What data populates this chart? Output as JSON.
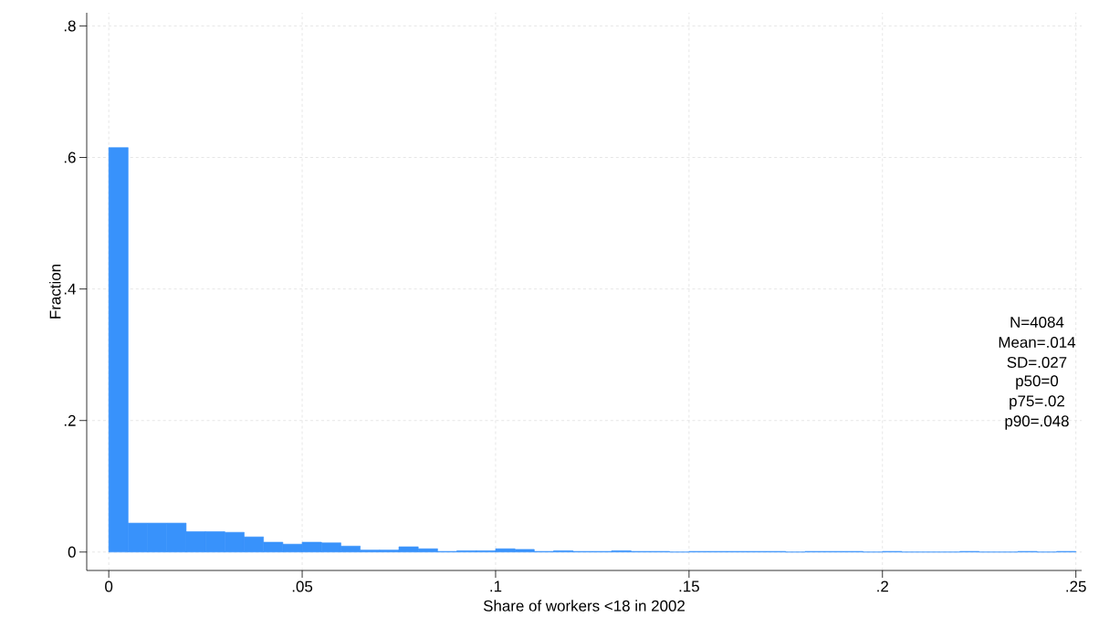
{
  "chart_data": {
    "type": "histogram",
    "xlabel": "Share of workers <18 in 2002",
    "ylabel": "Fraction",
    "bins": [
      0,
      0.005,
      0.01,
      0.015,
      0.02,
      0.025,
      0.03,
      0.035,
      0.04,
      0.045,
      0.05,
      0.055,
      0.06,
      0.065,
      0.07,
      0.075,
      0.08,
      0.085,
      0.09,
      0.095,
      0.1,
      0.105,
      0.11,
      0.115,
      0.12,
      0.125,
      0.13,
      0.135,
      0.14,
      0.145,
      0.15,
      0.155,
      0.16,
      0.165,
      0.17,
      0.175,
      0.18,
      0.185,
      0.19,
      0.195,
      0.2,
      0.205,
      0.21,
      0.215,
      0.22,
      0.225,
      0.23,
      0.235,
      0.24,
      0.245,
      0.25
    ],
    "values": [
      0.615,
      0.044,
      0.044,
      0.044,
      0.031,
      0.031,
      0.03,
      0.023,
      0.015,
      0.012,
      0.015,
      0.014,
      0.009,
      0.003,
      0.003,
      0.008,
      0.005,
      0.001,
      0.002,
      0.002,
      0.005,
      0.004,
      0.001,
      0.002,
      0.001,
      0.001,
      0.002,
      0.001,
      0.001,
      0,
      0.001,
      0.001,
      0.001,
      0.001,
      0.001,
      0,
      0.001,
      0.001,
      0.001,
      0,
      0.001,
      0,
      0,
      0,
      0.001,
      0,
      0,
      0.001,
      0,
      0.001
    ],
    "color": "#3892fb",
    "xlim": [
      -0.0057,
      0.2515
    ],
    "ylim": [
      -0.028,
      0.82
    ],
    "xticks": [
      0,
      {
        "value": 0.05,
        "label": ".05"
      },
      {
        "value": 0.1,
        "label": ".1"
      },
      {
        "value": 0.15,
        "label": ".15"
      },
      {
        "value": 0.2,
        "label": ".2"
      },
      {
        "value": 0.25,
        "label": ".25"
      }
    ],
    "yticks": [
      0,
      {
        "value": 0.2,
        "label": ".2"
      },
      {
        "value": 0.4,
        "label": ".4"
      },
      {
        "value": 0.6,
        "label": ".6"
      },
      {
        "value": 0.8,
        "label": ".8"
      }
    ],
    "grid": true,
    "annotations": [
      "N=4084",
      "Mean=.014",
      "SD=.027",
      "p50=0",
      "p75=.02",
      "p90=.048"
    ]
  }
}
